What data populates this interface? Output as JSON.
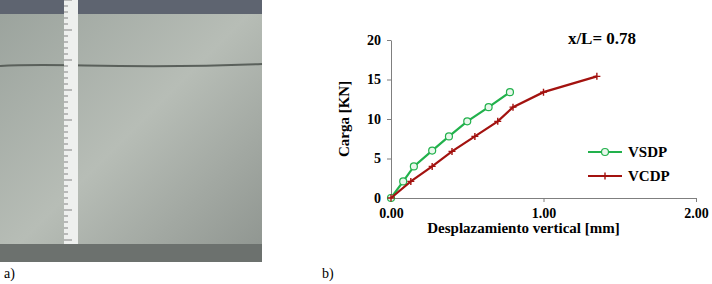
{
  "panel_labels": [
    "a)",
    "b)"
  ],
  "chart_data": {
    "type": "line",
    "title": "x/L= 0.78",
    "x_label": "Desplazamiento vertical [mm]",
    "y_label": "Carga [KN]",
    "xlim": [
      0,
      2
    ],
    "xticks": [
      {
        "value": 0,
        "label": "0.00"
      },
      {
        "value": 1,
        "label": "1.00"
      },
      {
        "value": 2,
        "label": "2.00"
      }
    ],
    "ylim": [
      0,
      20
    ],
    "yticks": [
      0,
      5,
      10,
      15,
      20
    ],
    "grid": false,
    "legend": "right",
    "series": [
      {
        "name": "VSDP",
        "color": "#22b14c",
        "marker": "circle",
        "line_style": "solid",
        "x": [
          0,
          0.08,
          0.15,
          0.27,
          0.38,
          0.5,
          0.64,
          0.78
        ],
        "values": [
          0,
          2.1,
          4.0,
          6.0,
          7.8,
          9.7,
          11.5,
          13.4
        ]
      },
      {
        "name": "VCDP",
        "color": "#a3120f",
        "marker": "plus",
        "line_style": "solid",
        "x": [
          0,
          0.13,
          0.27,
          0.4,
          0.55,
          0.7,
          0.8,
          1.0,
          1.35
        ],
        "values": [
          0,
          2.1,
          4.0,
          5.9,
          7.8,
          9.7,
          11.5,
          13.4,
          15.4
        ]
      }
    ]
  }
}
